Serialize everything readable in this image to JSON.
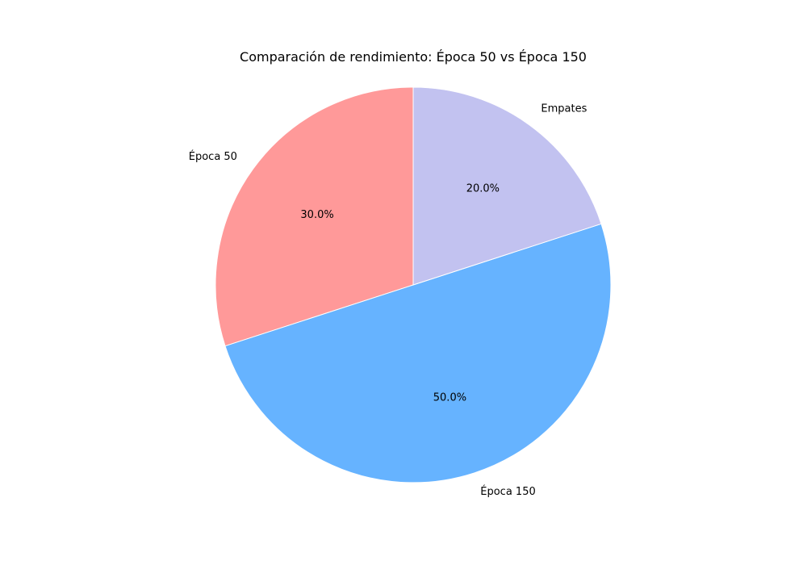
{
  "chart_data": {
    "type": "pie",
    "title": "Comparación de rendimiento: Época 50 vs Época 150",
    "slices": [
      {
        "label": "Época 50",
        "value": 30.0,
        "pct_label": "30.0%",
        "color": "#ff9999"
      },
      {
        "label": "Época 150",
        "value": 50.0,
        "pct_label": "50.0%",
        "color": "#66b3ff"
      },
      {
        "label": "Empates",
        "value": 20.0,
        "pct_label": "20.0%",
        "color": "#c2c2f0"
      }
    ],
    "start_angle_deg": 90,
    "direction": "counterclockwise",
    "legend": "none"
  }
}
